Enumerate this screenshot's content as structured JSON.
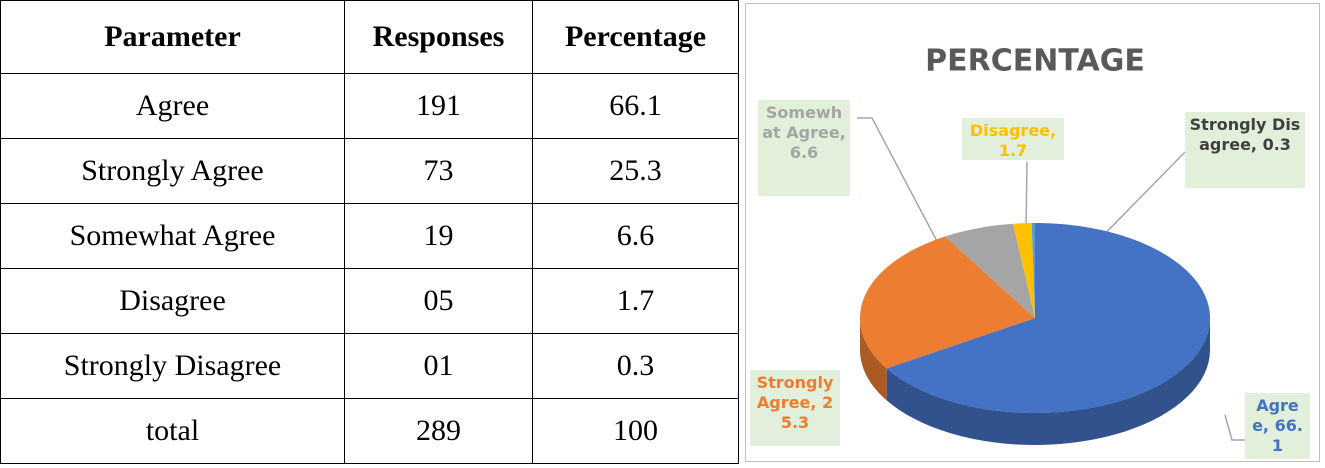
{
  "table": {
    "header": [
      "Parameter",
      "Responses",
      "Percentage"
    ],
    "rows": [
      [
        "Agree",
        "191",
        "66.1"
      ],
      [
        "Strongly Agree",
        "73",
        "25.3"
      ],
      [
        "Somewhat Agree",
        "19",
        "6.6"
      ],
      [
        "Disagree",
        "05",
        "1.7"
      ],
      [
        "Strongly Disagree",
        "01",
        "0.3"
      ],
      [
        "total",
        "289",
        "100"
      ]
    ]
  },
  "chart_data": {
    "type": "pie",
    "title": "PERCENTAGE",
    "categories": [
      "Agree",
      "Strongly Agree",
      "Somewhat Agree",
      "Disagree",
      "Strongly Disagree"
    ],
    "values": [
      66.1,
      25.3,
      6.6,
      1.7,
      0.3
    ],
    "value_labels": [
      "Agree, 66.1",
      "Strongly Agree, 25.3",
      "Somewhat Agree, 6.6",
      "Disagree, 1.7",
      "Strongly Disagree, 0.3"
    ],
    "colors": [
      "#4472c4",
      "#ed7d31",
      "#a5a5a5",
      "#ffc000",
      "#5b9bd5"
    ],
    "label_colors": [
      "#4472c4",
      "#ed7d31",
      "#a5a5a5",
      "#ffc000",
      "#404040"
    ]
  }
}
